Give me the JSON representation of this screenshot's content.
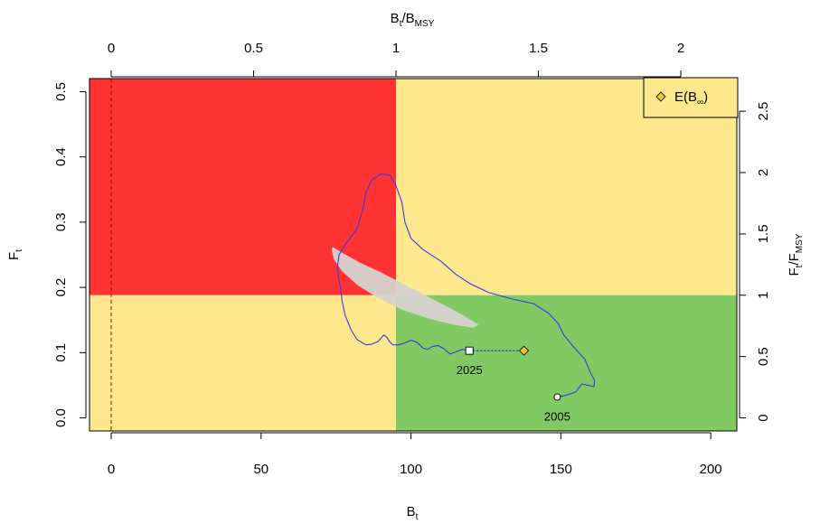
{
  "chart_data": {
    "type": "line",
    "title": "",
    "axes": {
      "bottom": {
        "label_main": "B",
        "label_sub": "t",
        "range": [
          -7.24,
          208.7
        ],
        "ticks": [
          0,
          50,
          100,
          150,
          200
        ]
      },
      "left": {
        "label_main": "F",
        "label_sub": "t",
        "range": [
          -0.02,
          0.52
        ],
        "ticks": [
          0.0,
          0.1,
          0.2,
          0.3,
          0.4,
          0.5
        ],
        "tick_labels": [
          "0.0",
          "0.1",
          "0.2",
          "0.3",
          "0.4",
          "0.5"
        ]
      },
      "top": {
        "label_main": "B",
        "label_sub": "t",
        "label_sep": "/",
        "label_main2": "B",
        "label_sub2": "MSY",
        "ticks": [
          0,
          0.5,
          1,
          1.5,
          2
        ],
        "tick_labels": [
          "0",
          "0.5",
          "1",
          "1.5",
          "2"
        ],
        "scale": 95
      },
      "right": {
        "label_main": "F",
        "label_sub": "t",
        "label_sep": "/",
        "label_main2": "F",
        "label_sub2": "MSY",
        "ticks": [
          0,
          0.5,
          1,
          1.5,
          2,
          2.5
        ],
        "tick_labels": [
          "0",
          "0.5",
          "1",
          "1.5",
          "2",
          "2.5"
        ],
        "scale": 0.188
      }
    },
    "reference": {
      "b_msy": 95,
      "f_msy": 0.188
    },
    "zones": [
      {
        "name": "overfishing-overfished",
        "x": [
          -7.24,
          95
        ],
        "y": [
          0.188,
          0.52
        ],
        "color": "#ff3333"
      },
      {
        "name": "overfishing-healthy",
        "x": [
          95,
          208.7
        ],
        "y": [
          0.188,
          0.52
        ],
        "color": "#fde88e"
      },
      {
        "name": "no-overfishing-overfished",
        "x": [
          -7.24,
          95
        ],
        "y": [
          -0.02,
          0.188
        ],
        "color": "#fde88e"
      },
      {
        "name": "healthy",
        "x": [
          95,
          208.7
        ],
        "y": [
          -0.02,
          0.188
        ],
        "color": "#80c963"
      }
    ],
    "zero_line": {
      "x": 0,
      "color": "#7a1010"
    },
    "confidence_region": {
      "color": "#d6d3d0",
      "points": [
        [
          73.8,
          0.262
        ],
        [
          77.5,
          0.252
        ],
        [
          83,
          0.238
        ],
        [
          90,
          0.223
        ],
        [
          98,
          0.204
        ],
        [
          106,
          0.185
        ],
        [
          114,
          0.166
        ],
        [
          119,
          0.153
        ],
        [
          122.5,
          0.143
        ],
        [
          121,
          0.138
        ],
        [
          115,
          0.142
        ],
        [
          106,
          0.152
        ],
        [
          97,
          0.166
        ],
        [
          89,
          0.184
        ],
        [
          82,
          0.204
        ],
        [
          77,
          0.225
        ],
        [
          74.3,
          0.243
        ],
        [
          73.6,
          0.256
        ]
      ]
    },
    "trajectory": {
      "color": "#3a3adf",
      "points": [
        [
          148.8,
          0.032
        ],
        [
          152,
          0.035
        ],
        [
          155,
          0.04
        ],
        [
          157,
          0.052
        ],
        [
          159,
          0.05
        ],
        [
          161,
          0.048
        ],
        [
          161.3,
          0.057
        ],
        [
          160,
          0.068
        ],
        [
          158,
          0.09
        ],
        [
          154,
          0.11
        ],
        [
          151,
          0.127
        ],
        [
          149,
          0.145
        ],
        [
          146,
          0.16
        ],
        [
          141,
          0.175
        ],
        [
          134,
          0.182
        ],
        [
          126,
          0.192
        ],
        [
          120,
          0.205
        ],
        [
          115,
          0.22
        ],
        [
          110,
          0.24
        ],
        [
          104,
          0.258
        ],
        [
          100,
          0.275
        ],
        [
          98,
          0.3
        ],
        [
          97,
          0.33
        ],
        [
          95,
          0.356
        ],
        [
          93,
          0.372
        ],
        [
          90,
          0.374
        ],
        [
          87,
          0.365
        ],
        [
          85,
          0.345
        ],
        [
          84,
          0.32
        ],
        [
          82,
          0.29
        ],
        [
          78,
          0.265
        ],
        [
          76,
          0.25
        ],
        [
          75.5,
          0.232
        ],
        [
          75.8,
          0.215
        ],
        [
          76.5,
          0.2
        ],
        [
          77,
          0.18
        ],
        [
          78,
          0.158
        ],
        [
          80,
          0.135
        ],
        [
          82,
          0.12
        ],
        [
          85,
          0.112
        ],
        [
          87,
          0.113
        ],
        [
          89,
          0.117
        ],
        [
          90,
          0.122
        ],
        [
          91,
          0.127
        ],
        [
          92,
          0.123
        ],
        [
          93,
          0.116
        ],
        [
          94,
          0.112
        ],
        [
          96,
          0.112
        ],
        [
          98,
          0.115
        ],
        [
          100,
          0.119
        ],
        [
          102,
          0.116
        ],
        [
          104,
          0.107
        ],
        [
          105.5,
          0.105
        ],
        [
          107,
          0.109
        ],
        [
          109,
          0.111
        ],
        [
          111,
          0.106
        ],
        [
          113,
          0.098
        ],
        [
          115,
          0.101
        ],
        [
          117,
          0.105
        ],
        [
          118.5,
          0.104
        ],
        [
          119.5,
          0.103
        ]
      ]
    },
    "start": {
      "year": "2005",
      "x": 148.8,
      "y": 0.032
    },
    "end": {
      "year": "2025",
      "x": 119.5,
      "y": 0.103
    },
    "projection": {
      "x": [
        119.5,
        137.7
      ],
      "y": [
        0.103,
        0.103
      ]
    },
    "equilibrium": {
      "x": 137.7,
      "y": 0.103,
      "color": "#f5c518"
    },
    "legend": {
      "position": "top-right",
      "label_main": "E(B",
      "label_sub": "∞",
      "label_end": ")"
    }
  }
}
